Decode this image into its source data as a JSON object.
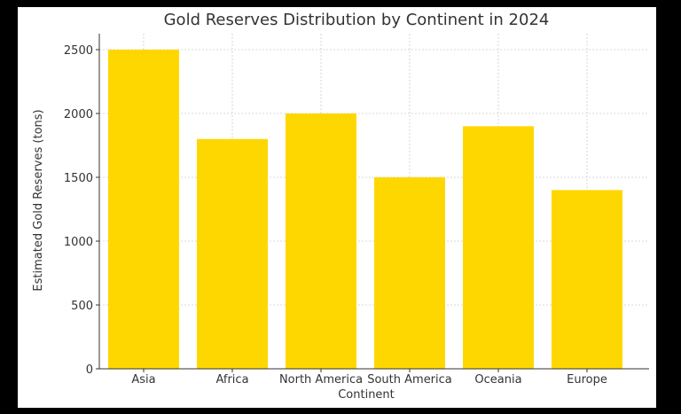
{
  "chart_data": {
    "type": "bar",
    "title": "Gold Reserves Distribution by Continent in 2024",
    "xlabel": "Continent",
    "ylabel": "Estimated Gold Reserves (tons)",
    "categories": [
      "Asia",
      "Africa",
      "North America",
      "South America",
      "Oceania",
      "Europe"
    ],
    "values": [
      2500,
      1800,
      2000,
      1500,
      1900,
      1400
    ],
    "ylim": [
      0,
      2625
    ],
    "yticks": [
      0,
      500,
      1000,
      1500,
      2000,
      2500
    ],
    "grid": true,
    "bar_color": "#FFD700"
  }
}
